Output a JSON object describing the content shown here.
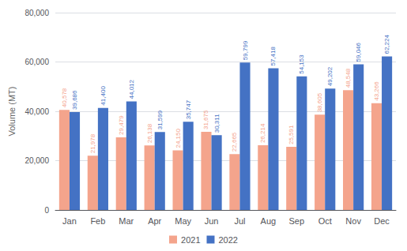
{
  "chart_data": {
    "type": "bar",
    "ylabel": "Volume (MT)",
    "categories": [
      "Jan",
      "Feb",
      "Mar",
      "Apr",
      "May",
      "Jun",
      "Jul",
      "Aug",
      "Sep",
      "Oct",
      "Nov",
      "Dec"
    ],
    "series": [
      {
        "name": "2021",
        "color": "#f4a48c",
        "values": [
          40578,
          21978,
          29479,
          26138,
          24150,
          31675,
          22665,
          26214,
          25591,
          38605,
          48548,
          43266
        ],
        "value_labels": [
          "40,578",
          "21,978",
          "29,479",
          "26,138",
          "24,150",
          "31,675",
          "22,665",
          "26,214",
          "25,591",
          "38,605",
          "48,548",
          "43,266"
        ]
      },
      {
        "name": "2022",
        "color": "#4472c4",
        "values": [
          39686,
          41400,
          44012,
          31599,
          35747,
          30311,
          59799,
          57418,
          54153,
          49202,
          59046,
          62224
        ],
        "value_labels": [
          "39,686",
          "41,400",
          "44,012",
          "31,599",
          "35,747",
          "30,311",
          "59,799",
          "57,418",
          "54,153",
          "49,202",
          "59,046",
          "62,224"
        ]
      }
    ],
    "ylim": [
      0,
      80000
    ],
    "yticks": [
      0,
      {
        "value": 20000,
        "label": "20,000"
      },
      {
        "value": 40000,
        "label": "40,000"
      },
      {
        "value": 60000,
        "label": "60,000"
      },
      {
        "value": 80000,
        "label": "80,000"
      }
    ],
    "grid": true,
    "legend": "bottom",
    "data_labels": true
  }
}
